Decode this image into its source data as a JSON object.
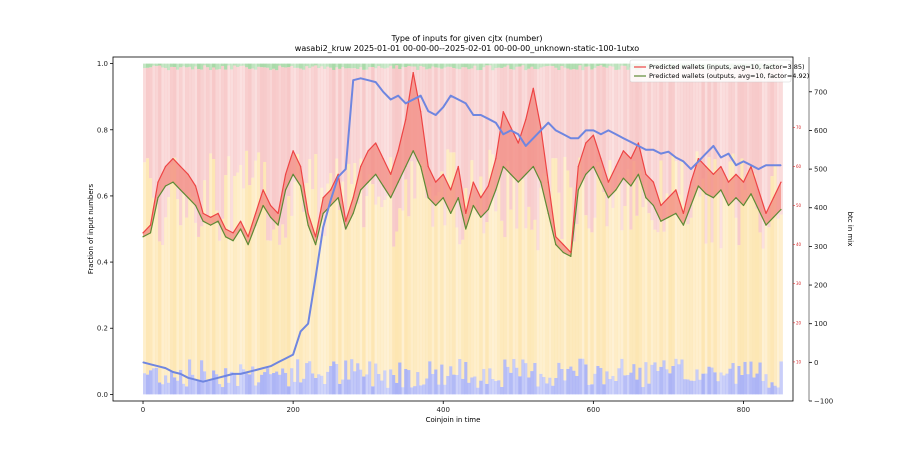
{
  "chart_data": {
    "type": "line",
    "title": "Type of inputs for given cjtx (number)",
    "subtitle": "wasabi2_kruw 2025-01-01 00-00-00--2025-02-01 00-00-00_unknown-static-100-1utxo",
    "xlabel": "Coinjoin in time",
    "ylabel": "Fraction of input numbers",
    "y2label": "btc in mix",
    "xlim": [
      -40,
      866
    ],
    "ylim": [
      -0.02,
      1.02
    ],
    "y2lim": [
      -100,
      790
    ],
    "y3lim": [
      0,
      88
    ],
    "x_ticks": [
      0,
      200,
      400,
      600,
      800
    ],
    "y_ticks": [
      0.0,
      0.2,
      0.4,
      0.6,
      0.8,
      1.0
    ],
    "y2_ticks": [
      -100,
      0,
      100,
      200,
      300,
      400,
      500,
      600,
      700
    ],
    "y3_ticks": [
      10,
      20,
      30,
      40,
      50,
      60,
      70
    ],
    "grid": false,
    "legend_position": "top-right",
    "colors": {
      "inputs_line": "#ee4444",
      "outputs_line": "#5e8a35",
      "btc_line": "#6f86e0",
      "fill_between": "#f28a80",
      "band_pink": "#f7c8c8",
      "band_yellow": "#fde6b2",
      "band_blue": "#aab2f5",
      "band_green": "#a6d9a6",
      "right_axis_ticks": "#d62728",
      "btc_axis": "#4466cc"
    },
    "series": [
      {
        "name": "Predicted wallets (inputs, avg=10, factor=3.85)",
        "axis": "right_inner",
        "x": [
          0,
          10,
          20,
          30,
          40,
          50,
          60,
          70,
          80,
          90,
          100,
          110,
          120,
          130,
          140,
          150,
          160,
          170,
          180,
          190,
          200,
          210,
          220,
          230,
          240,
          250,
          260,
          270,
          280,
          290,
          300,
          310,
          320,
          330,
          340,
          350,
          360,
          370,
          380,
          390,
          400,
          410,
          420,
          430,
          440,
          450,
          460,
          470,
          480,
          490,
          500,
          510,
          520,
          530,
          540,
          550,
          560,
          570,
          580,
          590,
          600,
          610,
          620,
          630,
          640,
          650,
          660,
          670,
          680,
          690,
          700,
          710,
          720,
          730,
          740,
          750,
          760,
          770,
          780,
          790,
          800,
          810,
          820,
          830,
          840,
          850
        ],
        "values": [
          43,
          45,
          56,
          60,
          62,
          60,
          58,
          55,
          48,
          47,
          48,
          44,
          43,
          46,
          42,
          48,
          54,
          50,
          48,
          58,
          64,
          60,
          48,
          42,
          52,
          54,
          58,
          46,
          52,
          60,
          64,
          66,
          62,
          58,
          64,
          72,
          84,
          74,
          60,
          56,
          58,
          54,
          60,
          48,
          56,
          52,
          55,
          62,
          74,
          70,
          66,
          72,
          80,
          70,
          56,
          42,
          40,
          38,
          60,
          66,
          68,
          62,
          56,
          60,
          64,
          62,
          66,
          58,
          56,
          50,
          52,
          54,
          48,
          56,
          62,
          60,
          58,
          60,
          56,
          58,
          56,
          60,
          54,
          48,
          52,
          56
        ]
      },
      {
        "name": "Predicted wallets (outputs, avg=10, factor=4.92)",
        "axis": "right_inner",
        "x": [
          0,
          10,
          20,
          30,
          40,
          50,
          60,
          70,
          80,
          90,
          100,
          110,
          120,
          130,
          140,
          150,
          160,
          170,
          180,
          190,
          200,
          210,
          220,
          230,
          240,
          250,
          260,
          270,
          280,
          290,
          300,
          310,
          320,
          330,
          340,
          350,
          360,
          370,
          380,
          390,
          400,
          410,
          420,
          430,
          440,
          450,
          460,
          470,
          480,
          490,
          500,
          510,
          520,
          530,
          540,
          550,
          560,
          570,
          580,
          590,
          600,
          610,
          620,
          630,
          640,
          650,
          660,
          670,
          680,
          690,
          700,
          710,
          720,
          730,
          740,
          750,
          760,
          770,
          780,
          790,
          800,
          810,
          820,
          830,
          840,
          850
        ],
        "values": [
          42,
          43,
          52,
          55,
          56,
          54,
          52,
          50,
          46,
          45,
          46,
          42,
          41,
          44,
          40,
          45,
          50,
          47,
          45,
          54,
          58,
          55,
          45,
          40,
          48,
          50,
          52,
          44,
          48,
          54,
          56,
          58,
          55,
          52,
          56,
          60,
          64,
          60,
          52,
          50,
          52,
          48,
          52,
          44,
          50,
          47,
          49,
          54,
          60,
          58,
          56,
          58,
          60,
          56,
          48,
          40,
          38,
          37,
          54,
          58,
          60,
          56,
          52,
          54,
          57,
          55,
          58,
          52,
          50,
          46,
          47,
          48,
          45,
          50,
          55,
          53,
          52,
          54,
          50,
          52,
          50,
          53,
          49,
          45,
          47,
          49
        ]
      },
      {
        "name": "btc in mix",
        "axis": "right_outer",
        "x": [
          0,
          10,
          20,
          30,
          40,
          50,
          60,
          70,
          80,
          90,
          100,
          110,
          120,
          130,
          140,
          150,
          160,
          170,
          180,
          190,
          200,
          210,
          220,
          230,
          240,
          250,
          260,
          270,
          280,
          290,
          300,
          310,
          320,
          330,
          340,
          350,
          360,
          370,
          380,
          390,
          400,
          410,
          420,
          430,
          440,
          450,
          460,
          470,
          480,
          490,
          500,
          510,
          520,
          530,
          540,
          550,
          560,
          570,
          580,
          590,
          600,
          610,
          620,
          630,
          640,
          650,
          660,
          670,
          680,
          690,
          700,
          710,
          720,
          730,
          740,
          750,
          760,
          770,
          780,
          790,
          800,
          810,
          820,
          830,
          840,
          850
        ],
        "values": [
          0,
          -5,
          -10,
          -15,
          -25,
          -30,
          -40,
          -45,
          -50,
          -45,
          -40,
          -35,
          -30,
          -30,
          -25,
          -20,
          -15,
          -10,
          0,
          10,
          20,
          80,
          100,
          220,
          350,
          420,
          480,
          500,
          730,
          735,
          730,
          725,
          700,
          680,
          690,
          670,
          680,
          690,
          650,
          640,
          660,
          690,
          680,
          670,
          640,
          640,
          630,
          620,
          590,
          600,
          590,
          560,
          580,
          600,
          620,
          600,
          590,
          580,
          580,
          600,
          600,
          590,
          600,
          590,
          580,
          570,
          560,
          550,
          550,
          540,
          545,
          530,
          520,
          500,
          520,
          540,
          560,
          530,
          540,
          510,
          520,
          510,
          500,
          510,
          510,
          510
        ]
      }
    ]
  }
}
